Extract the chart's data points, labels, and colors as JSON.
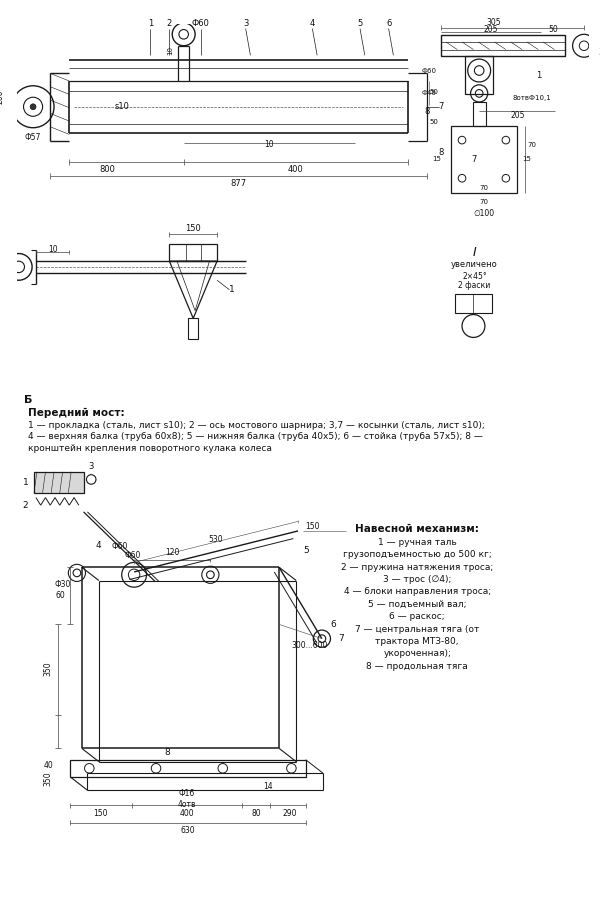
{
  "bg_color": "#ffffff",
  "fig_width": 6.0,
  "fig_height": 9.06,
  "dpi": 100,
  "line_color": "#1a1a1a",
  "text_color": "#111111",
  "section1_label": "Передний мост:",
  "section1_lines": [
    "1 — прокладка (сталь, лист s10); 2 — ось мостового шарнира; 3,7 — косынки (сталь, лист s10);",
    "4 — верхняя балка (труба 60х8); 5 — нижняя балка (труба 40х5); 6 — стойка (труба 57х5); 8 —",
    "кронштейн крепления поворотного кулака колеса"
  ],
  "section2_title": "Навесной механизм:",
  "section2_lines": [
    "1 — ручная таль",
    "грузоподъемностью до 500 кг;",
    "2 — пружина натяжения троса;",
    "3 — трос (∅4);",
    "4 — блоки направления троса;",
    "5 — подъемный вал;",
    "6 — раскос;",
    "7 — центральная тяга (от",
    "трактора МТЗ-80,",
    "укороченная);",
    "8 — продольная тяга"
  ]
}
